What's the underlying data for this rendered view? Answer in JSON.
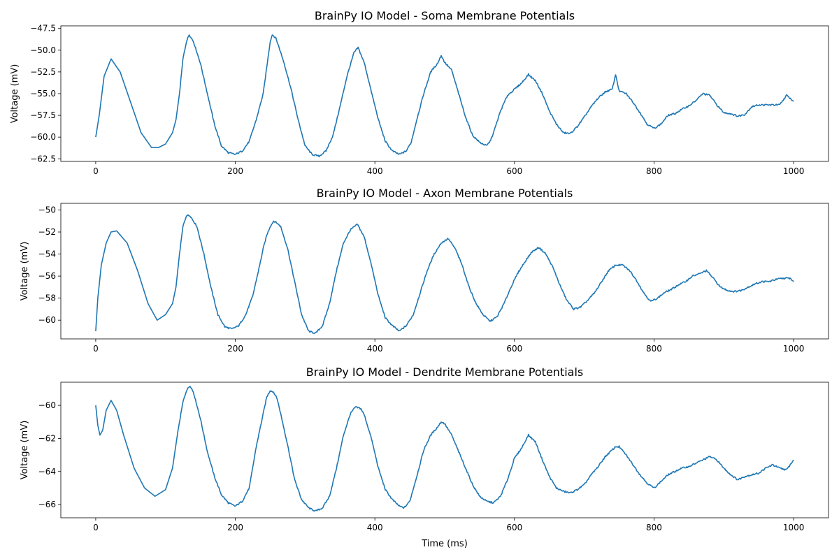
{
  "chart_data": [
    {
      "type": "line",
      "title": "BrainPy IO Model - Soma Membrane Potentials",
      "xlabel": "",
      "ylabel": "Voltage (mV)",
      "xlim": [
        -50,
        1050
      ],
      "ylim": [
        -62.8,
        -47.2
      ],
      "xticks": [
        0,
        200,
        400,
        600,
        800,
        1000
      ],
      "yticks": [
        -62.5,
        -60.0,
        -57.5,
        -55.0,
        -52.5,
        -50.0,
        -47.5
      ],
      "ytick_labels": [
        "−62.5",
        "−60.0",
        "−57.5",
        "−55.0",
        "−52.5",
        "−50.0",
        "−47.5"
      ],
      "grid": false,
      "series": [
        {
          "color": "#1f77b4",
          "x": [
            0,
            5,
            12,
            22,
            35,
            50,
            65,
            80,
            90,
            100,
            110,
            115,
            120,
            125,
            130,
            134,
            140,
            150,
            160,
            170,
            180,
            190,
            200,
            210,
            220,
            230,
            240,
            245,
            250,
            253,
            258,
            262,
            270,
            280,
            290,
            300,
            310,
            320,
            330,
            340,
            350,
            360,
            370,
            376,
            385,
            395,
            405,
            415,
            425,
            435,
            445,
            452,
            460,
            470,
            480,
            490,
            495,
            500,
            510,
            520,
            530,
            540,
            550,
            560,
            565,
            570,
            580,
            590,
            600,
            610,
            620,
            630,
            640,
            650,
            660,
            670,
            680,
            690,
            700,
            710,
            720,
            730,
            740,
            745,
            750,
            760,
            770,
            780,
            790,
            800,
            810,
            820,
            830,
            840,
            850,
            860,
            870,
            880,
            890,
            900,
            910,
            920,
            930,
            940,
            950,
            960,
            970,
            980,
            990,
            1000
          ],
          "y": [
            -60,
            -57.5,
            -53,
            -51,
            -52.5,
            -56,
            -59.5,
            -61.2,
            -61.2,
            -60.8,
            -59.5,
            -58,
            -55,
            -51,
            -49,
            -48.2,
            -49,
            -51.5,
            -55,
            -58.5,
            -61,
            -61.8,
            -62,
            -61.6,
            -60.5,
            -58,
            -55,
            -52,
            -49,
            -48.2,
            -48.6,
            -49.5,
            -51.5,
            -54.5,
            -58,
            -61,
            -62,
            -62.2,
            -61.6,
            -59.8,
            -56.5,
            -53,
            -50.3,
            -49.7,
            -51.5,
            -54.8,
            -58,
            -60.5,
            -61.6,
            -62,
            -61.6,
            -60.6,
            -58,
            -55,
            -52.5,
            -51.5,
            -50.6,
            -51.4,
            -52.3,
            -55,
            -57.7,
            -59.8,
            -60.6,
            -61,
            -60.5,
            -59.5,
            -57,
            -55.2,
            -54.5,
            -53.8,
            -52.8,
            -53.5,
            -55,
            -57,
            -58.5,
            -59.5,
            -59.6,
            -58.8,
            -57.7,
            -56.5,
            -55.5,
            -54.8,
            -54.5,
            -52.8,
            -54.7,
            -55,
            -56,
            -57.2,
            -58.5,
            -59,
            -58.5,
            -57.5,
            -57.3,
            -56.8,
            -56.4,
            -55.8,
            -55,
            -55.2,
            -56.3,
            -57.2,
            -57.3,
            -57.6,
            -57.4,
            -56.5,
            -56.3,
            -56.3,
            -56.3,
            -56.3,
            -55.2,
            -55.9
          ]
        }
      ]
    },
    {
      "type": "line",
      "title": "BrainPy IO Model - Axon Membrane Potentials",
      "xlabel": "",
      "ylabel": "Voltage (mV)",
      "xlim": [
        -50,
        1050
      ],
      "ylim": [
        -61.7,
        -49.4
      ],
      "xticks": [
        0,
        200,
        400,
        600,
        800,
        1000
      ],
      "yticks": [
        -60,
        -58,
        -56,
        -54,
        -52,
        -50
      ],
      "ytick_labels": [
        "−60",
        "−58",
        "−56",
        "−54",
        "−52",
        "−50"
      ],
      "grid": false,
      "series": [
        {
          "color": "#1f77b4",
          "x": [
            0,
            3,
            8,
            15,
            22,
            30,
            45,
            60,
            75,
            88,
            100,
            110,
            115,
            120,
            125,
            130,
            135,
            145,
            155,
            165,
            175,
            185,
            195,
            205,
            215,
            225,
            235,
            240,
            245,
            250,
            255,
            260,
            265,
            275,
            285,
            295,
            305,
            315,
            325,
            335,
            345,
            355,
            365,
            375,
            385,
            395,
            405,
            415,
            425,
            435,
            445,
            455,
            465,
            475,
            485,
            495,
            505,
            515,
            525,
            535,
            545,
            555,
            565,
            575,
            585,
            595,
            605,
            615,
            625,
            635,
            645,
            655,
            665,
            675,
            685,
            695,
            705,
            715,
            725,
            735,
            745,
            755,
            765,
            775,
            785,
            795,
            805,
            815,
            825,
            835,
            845,
            855,
            865,
            875,
            885,
            895,
            905,
            915,
            925,
            935,
            945,
            955,
            965,
            975,
            985,
            995,
            1000
          ],
          "y": [
            -61,
            -58,
            -55,
            -53,
            -52,
            -51.9,
            -53,
            -55.5,
            -58.5,
            -60,
            -59.5,
            -58.5,
            -57,
            -54,
            -51.5,
            -50.5,
            -50.5,
            -51.5,
            -54,
            -57,
            -59.5,
            -60.6,
            -60.8,
            -60.5,
            -59.5,
            -57.8,
            -55,
            -53.5,
            -52.3,
            -51.5,
            -51,
            -51.2,
            -51.5,
            -53.5,
            -56.5,
            -59.5,
            -61,
            -61.2,
            -60.5,
            -58.5,
            -55.5,
            -53,
            -51.8,
            -51.3,
            -52.5,
            -55,
            -57.8,
            -59.8,
            -60.5,
            -61,
            -60.5,
            -59.5,
            -57.5,
            -55.5,
            -54,
            -53,
            -52.6,
            -53.5,
            -55,
            -57,
            -58.5,
            -59.5,
            -60.1,
            -59.7,
            -58.5,
            -57,
            -55.7,
            -54.7,
            -53.8,
            -53.4,
            -54,
            -55.2,
            -56.8,
            -58.2,
            -59,
            -58.8,
            -58.2,
            -57.5,
            -56.5,
            -55.5,
            -55,
            -55,
            -55.5,
            -56.4,
            -57.5,
            -58.3,
            -58,
            -57.5,
            -57.2,
            -56.8,
            -56.5,
            -56,
            -55.8,
            -55.5,
            -56.2,
            -57,
            -57.3,
            -57.4,
            -57.3,
            -57,
            -56.7,
            -56.5,
            -56.5,
            -56.3,
            -56.2,
            -56.2,
            -56.5
          ]
        }
      ]
    },
    {
      "type": "line",
      "title": "BrainPy IO Model - Dendrite Membrane Potentials",
      "xlabel": "Time (ms)",
      "ylabel": "Voltage (mV)",
      "xlim": [
        -50,
        1050
      ],
      "ylim": [
        -66.8,
        -58.6
      ],
      "xticks": [
        0,
        200,
        400,
        600,
        800,
        1000
      ],
      "yticks": [
        -66,
        -64,
        -62,
        -60
      ],
      "ytick_labels": [
        "−66",
        "−64",
        "−62",
        "−60"
      ],
      "grid": false,
      "series": [
        {
          "color": "#1f77b4",
          "x": [
            0,
            3,
            6,
            10,
            15,
            22,
            30,
            40,
            55,
            70,
            85,
            100,
            110,
            118,
            125,
            130,
            135,
            140,
            150,
            160,
            170,
            180,
            190,
            200,
            210,
            220,
            230,
            240,
            245,
            250,
            255,
            260,
            265,
            275,
            285,
            295,
            305,
            315,
            325,
            335,
            345,
            355,
            365,
            372,
            380,
            385,
            395,
            405,
            415,
            425,
            435,
            442,
            450,
            460,
            470,
            480,
            490,
            495,
            500,
            510,
            520,
            530,
            540,
            550,
            560,
            570,
            580,
            590,
            600,
            610,
            620,
            630,
            640,
            650,
            660,
            670,
            680,
            690,
            700,
            710,
            720,
            730,
            740,
            745,
            750,
            760,
            770,
            780,
            790,
            800,
            810,
            820,
            830,
            840,
            850,
            860,
            870,
            880,
            890,
            900,
            910,
            920,
            930,
            940,
            950,
            960,
            970,
            980,
            990,
            1000
          ],
          "y": [
            -60,
            -61.2,
            -61.8,
            -61.5,
            -60.3,
            -59.7,
            -60.3,
            -61.8,
            -63.8,
            -65,
            -65.5,
            -65.1,
            -63.8,
            -61.5,
            -59.8,
            -59.1,
            -58.8,
            -59.2,
            -60.8,
            -62.8,
            -64.3,
            -65.4,
            -65.9,
            -66.1,
            -65.8,
            -65,
            -62.5,
            -60.5,
            -59.5,
            -59.1,
            -59.2,
            -59.6,
            -60.5,
            -62.4,
            -64.5,
            -65.7,
            -66.2,
            -66.4,
            -66.2,
            -65.5,
            -63.8,
            -61.8,
            -60.5,
            -60.1,
            -60.2,
            -60.6,
            -62,
            -63.8,
            -65.1,
            -65.7,
            -66.1,
            -66.2,
            -65.8,
            -64.3,
            -62.7,
            -61.8,
            -61.3,
            -61,
            -61.1,
            -61.8,
            -62.8,
            -63.8,
            -64.8,
            -65.5,
            -65.8,
            -65.9,
            -65.5,
            -64.5,
            -63.2,
            -62.6,
            -61.8,
            -62.2,
            -63.3,
            -64.3,
            -65,
            -65.2,
            -65.3,
            -65.1,
            -64.8,
            -64.2,
            -63.7,
            -63.1,
            -62.7,
            -62.5,
            -62.5,
            -63,
            -63.6,
            -64.2,
            -64.7,
            -65,
            -64.6,
            -64.2,
            -64,
            -63.8,
            -63.7,
            -63.5,
            -63.3,
            -63.1,
            -63.3,
            -63.8,
            -64.2,
            -64.5,
            -64.3,
            -64.2,
            -64.1,
            -63.8,
            -63.6,
            -63.8,
            -63.9,
            -63.3
          ]
        }
      ]
    }
  ]
}
